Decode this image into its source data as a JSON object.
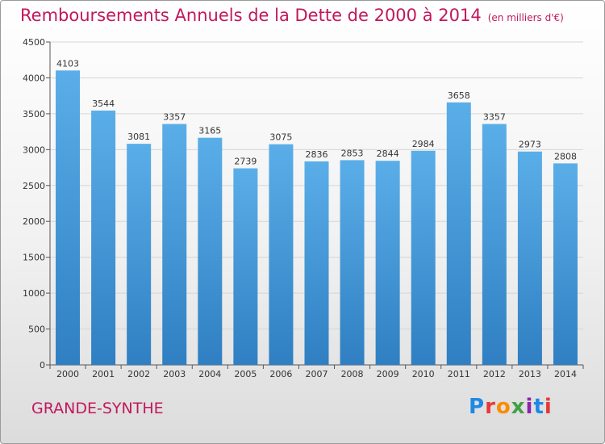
{
  "title": "Remboursements Annuels de la Dette de 2000 à 2014",
  "unit_note": "(en milliers d'€)",
  "commune": "GRANDE-SYNTHE",
  "logo": {
    "text": "Proxiti",
    "letter_colors": [
      "#1e88e5",
      "#e53935",
      "#fb8c00",
      "#43a047",
      "#8e24aa",
      "#1e88e5",
      "#e53935"
    ]
  },
  "colors": {
    "title": "#c2185b",
    "bar_top": "#5aaee8",
    "bar_bottom": "#2f7fc2",
    "grid": "#d6d6d6",
    "axis": "#555555"
  },
  "chart_data": {
    "type": "bar",
    "categories": [
      "2000",
      "2001",
      "2002",
      "2003",
      "2004",
      "2005",
      "2006",
      "2007",
      "2008",
      "2009",
      "2010",
      "2011",
      "2012",
      "2013",
      "2014"
    ],
    "values": [
      4103,
      3544,
      3081,
      3357,
      3165,
      2739,
      3075,
      2836,
      2853,
      2844,
      2984,
      3658,
      3357,
      2973,
      2808
    ],
    "ylim": [
      0,
      4500
    ],
    "yticks": [
      0,
      500,
      1000,
      1500,
      2000,
      2500,
      3000,
      3500,
      4000,
      4500
    ],
    "grid": true,
    "data_labels": true
  }
}
